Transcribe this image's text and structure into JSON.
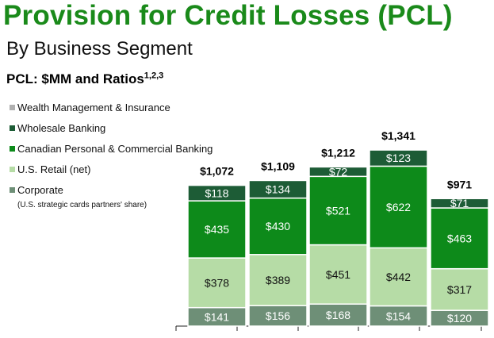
{
  "title": "Provision for Credit Losses (PCL)",
  "subtitle": "By Business Segment",
  "heading": {
    "text": "PCL: $MM and Ratios",
    "superscript": "1,2,3"
  },
  "legend": [
    {
      "label": "Wealth Management & Insurance",
      "color": "#b0b0b0"
    },
    {
      "label": "Wholesale Banking",
      "color": "#1d5c36"
    },
    {
      "label": "Canadian Personal & Commercial Banking",
      "color": "#0d8a1a"
    },
    {
      "label": "U.S. Retail (net)",
      "color": "#b6dca6"
    },
    {
      "label": "Corporate",
      "color": "#6e8f77",
      "note": "(U.S. strategic cards partners' share)"
    }
  ],
  "chart_data": {
    "type": "bar",
    "stacked": true,
    "categories": [
      "",
      "",
      "",
      "",
      ""
    ],
    "series": [
      {
        "name": "Corporate",
        "color": "#6e8f77",
        "values": [
          141,
          156,
          168,
          154,
          120
        ],
        "labels": [
          "$141",
          "$156",
          "$168",
          "$154",
          "$120"
        ]
      },
      {
        "name": "U.S. Retail (net)",
        "color": "#b6dca6",
        "values": [
          378,
          389,
          451,
          442,
          317
        ],
        "labels": [
          "$378",
          "$389",
          "$451",
          "$442",
          "$317"
        ]
      },
      {
        "name": "Canadian Personal & Commercial Banking",
        "color": "#0d8a1a",
        "values": [
          435,
          430,
          521,
          622,
          463
        ],
        "labels": [
          "$435",
          "$430",
          "$521",
          "$622",
          "$463"
        ]
      },
      {
        "name": "Wholesale Banking",
        "color": "#1d5c36",
        "values": [
          118,
          134,
          72,
          123,
          71
        ],
        "labels": [
          "$118",
          "$134",
          "$72",
          "$123",
          "$71"
        ]
      }
    ],
    "totals": [
      1072,
      1109,
      1212,
      1341,
      971
    ],
    "total_labels": [
      "$1,072",
      "$1,109",
      "$1,212",
      "$1,341",
      "$971"
    ],
    "ylim": [
      0,
      1400
    ]
  }
}
